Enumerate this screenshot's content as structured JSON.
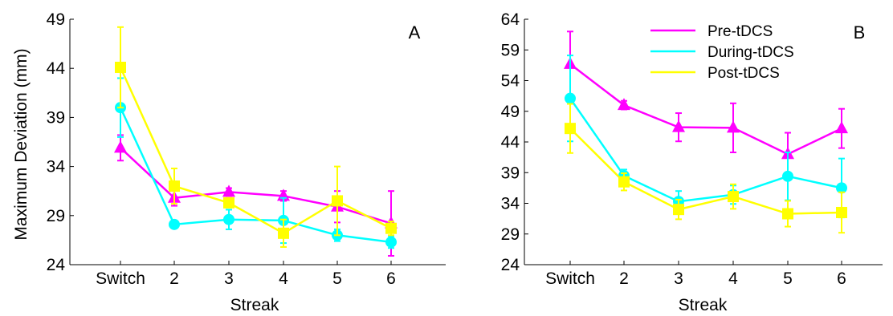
{
  "ylabel": "Maximum Deviation (mm)",
  "chart_data": [
    {
      "type": "line",
      "panel": "A",
      "xlabel": "Streak",
      "ylabel": "Maximum Deviation (mm)",
      "categories": [
        "Switch",
        "2",
        "3",
        "4",
        "5",
        "6"
      ],
      "ylim": [
        24,
        49
      ],
      "yticks": [
        24,
        29,
        34,
        39,
        44,
        49
      ],
      "legend": false,
      "series": [
        {
          "name": "Pre-tDCS",
          "color": "#ff00ff",
          "marker": "triangle",
          "values": [
            35.9,
            30.8,
            31.4,
            31.0,
            29.9,
            28.2
          ],
          "errors": [
            1.3,
            0.8,
            0.4,
            0.5,
            1.6,
            3.3
          ]
        },
        {
          "name": "During-tDCS",
          "color": "#00ffff",
          "marker": "circle",
          "values": [
            40.0,
            28.1,
            28.6,
            28.5,
            27.0,
            26.3
          ],
          "errors": [
            3.0,
            0.3,
            1.0,
            2.3,
            0.6,
            0.6
          ]
        },
        {
          "name": "Post-tDCS",
          "color": "#ffff00",
          "marker": "square",
          "values": [
            44.1,
            32.0,
            30.3,
            27.2,
            30.5,
            27.7
          ],
          "errors": [
            4.1,
            1.8,
            0.5,
            1.4,
            3.5,
            0.7
          ]
        }
      ]
    },
    {
      "type": "line",
      "panel": "B",
      "xlabel": "Streak",
      "categories": [
        "Switch",
        "2",
        "3",
        "4",
        "5",
        "6"
      ],
      "ylim": [
        24,
        64
      ],
      "yticks": [
        24,
        29,
        34,
        39,
        44,
        49,
        54,
        59,
        64
      ],
      "legend": true,
      "legend_position": "top-right",
      "series": [
        {
          "name": "Pre-tDCS",
          "color": "#ff00ff",
          "marker": "triangle",
          "values": [
            56.7,
            50.0,
            46.4,
            46.3,
            42.0,
            46.2
          ],
          "errors": [
            5.3,
            0.7,
            2.3,
            4.0,
            3.5,
            3.2
          ]
        },
        {
          "name": "During-tDCS",
          "color": "#00ffff",
          "marker": "circle",
          "values": [
            51.1,
            38.5,
            34.3,
            35.4,
            38.4,
            36.5
          ],
          "errors": [
            7.0,
            1.0,
            1.7,
            1.5,
            3.9,
            4.8
          ]
        },
        {
          "name": "Post-tDCS",
          "color": "#ffff00",
          "marker": "square",
          "values": [
            46.2,
            37.5,
            33.0,
            35.1,
            32.3,
            32.5
          ],
          "errors": [
            4.0,
            1.4,
            1.6,
            2.0,
            2.1,
            3.3
          ]
        }
      ]
    }
  ]
}
